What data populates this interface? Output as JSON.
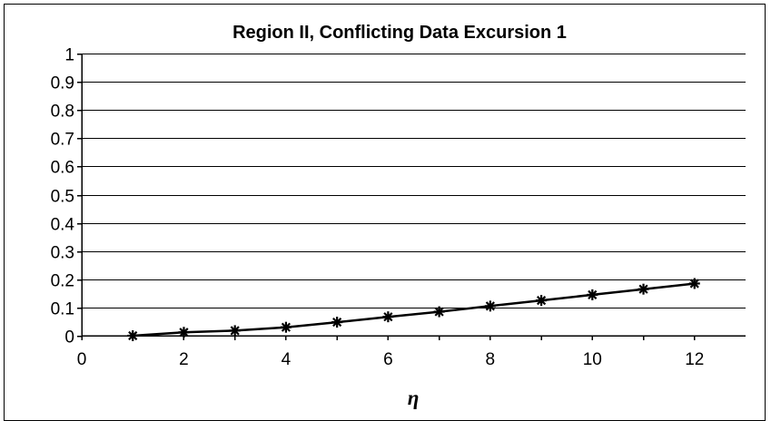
{
  "chart_data": {
    "type": "line",
    "title": "Region II, Conflicting Data Excursion 1",
    "xlabel": "η",
    "ylabel": "",
    "xlim": [
      0,
      13
    ],
    "ylim": [
      0,
      1
    ],
    "xticks": [
      0,
      2,
      4,
      6,
      8,
      10,
      12
    ],
    "yticks": [
      0,
      0.1,
      0.2,
      0.3,
      0.4,
      0.5,
      0.6,
      0.7,
      0.8,
      0.9,
      1
    ],
    "grid": true,
    "legend": "none",
    "marker": "asterisk",
    "series": [
      {
        "x": [
          1,
          2,
          3,
          4,
          5,
          6,
          7,
          8,
          9,
          10,
          11,
          12
        ],
        "values": [
          0.0,
          0.012,
          0.018,
          0.03,
          0.048,
          0.067,
          0.085,
          0.105,
          0.125,
          0.145,
          0.165,
          0.185
        ]
      }
    ]
  }
}
